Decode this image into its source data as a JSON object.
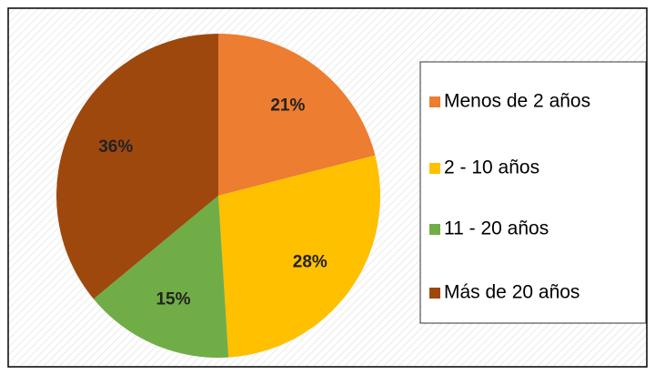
{
  "chart_data": {
    "type": "pie",
    "categories": [
      "Menos de 2 años",
      "2 - 10 años",
      "11 - 20 años",
      "Más de 20 años"
    ],
    "values": [
      21,
      28,
      15,
      36
    ],
    "value_labels": [
      "21%",
      "28%",
      "15%",
      "36%"
    ],
    "colors": [
      "#ed7d31",
      "#ffc000",
      "#70ad47",
      "#9e480e"
    ],
    "legend": "right"
  }
}
